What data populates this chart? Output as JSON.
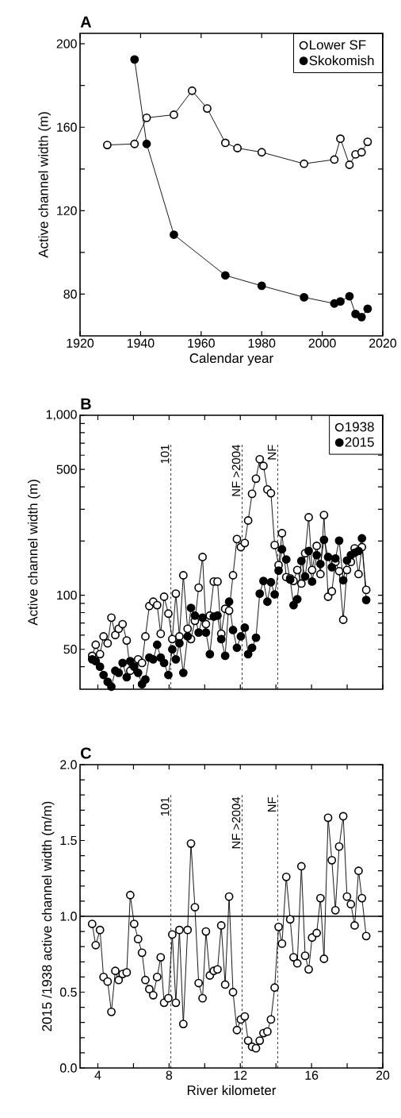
{
  "chart_data": [
    {
      "type": "line",
      "title": "A",
      "xlabel": "Calendar year",
      "ylabel": "Active channel width (m)",
      "xlim": [
        1920,
        2020
      ],
      "xticks": [
        1920,
        1940,
        1960,
        1980,
        2000,
        2020
      ],
      "ylim": [
        60,
        205
      ],
      "yticks": [
        80,
        {
          "value": 100,
          "label": null
        },
        120,
        {
          "value": 140,
          "label": null
        },
        160,
        {
          "value": 180,
          "label": null
        },
        200
      ],
      "marker": "circle",
      "legend": "top right",
      "series": [
        {
          "name": "Lower SF",
          "color": "#ffffff",
          "x": [
            1929,
            1938,
            1942,
            1951,
            1957,
            1962,
            1968,
            1972,
            1980,
            1994,
            2004,
            2006,
            2009,
            2011,
            2013,
            2015
          ],
          "values": [
            151.5,
            152,
            164.5,
            166,
            177.5,
            169,
            152.5,
            150,
            148,
            142.5,
            144.5,
            154.5,
            142,
            147,
            148,
            153
          ]
        },
        {
          "name": "Skokomish",
          "color": "#000000",
          "x": [
            1938,
            1942,
            1951,
            1968,
            1980,
            1994,
            2004,
            2006,
            2009,
            2011,
            2013,
            2015
          ],
          "values": [
            192.5,
            152,
            108.5,
            89,
            84,
            78.5,
            75.5,
            76.5,
            79,
            70.5,
            69,
            73
          ]
        }
      ]
    },
    {
      "type": "line",
      "title": "B",
      "ylabel": "Active channel width (m)",
      "log": "y",
      "tick_labels": "y",
      "xlim": [
        3,
        20
      ],
      "xticks": [
        {
          "value": 4,
          "label": null
        },
        {
          "value": 6,
          "label": null
        },
        {
          "value": 8,
          "label": null
        },
        {
          "value": 10,
          "label": null
        },
        {
          "value": 12,
          "label": null
        },
        {
          "value": 14,
          "label": null
        },
        {
          "value": 16,
          "label": null
        },
        {
          "value": 18,
          "label": null
        },
        {
          "value": 20,
          "label": null
        }
      ],
      "ylim": [
        30,
        1000
      ],
      "yticks": [
        {
          "value": 40,
          "label": null
        },
        50,
        {
          "value": 60,
          "label": null
        },
        {
          "value": 70,
          "label": null
        },
        {
          "value": 80,
          "label": null
        },
        {
          "value": 90,
          "label": null
        },
        100,
        {
          "value": 200,
          "label": null
        },
        {
          "value": 300,
          "label": null
        },
        {
          "value": 400,
          "label": null
        },
        500,
        {
          "value": 600,
          "label": null
        },
        {
          "value": 700,
          "label": null
        },
        {
          "value": 800,
          "label": null
        },
        {
          "value": 900,
          "label": null
        },
        {
          "value": 1000,
          "label": "1,000"
        }
      ],
      "marker": "circle",
      "legend": "top right",
      "annotations": [
        {
          "text": "101",
          "x": 8.1,
          "y": 705
        }
      ],
      "ref_lines": [
        {
          "axis": "x",
          "value": 8.1,
          "line_style": "dashed"
        },
        {
          "axis": "x",
          "value": 12.1,
          "label": "NF >2004",
          "line_style": "dashed"
        },
        {
          "axis": "x",
          "value": 14.1,
          "label": "NF",
          "line_style": "dashed"
        }
      ],
      "x": [
        3.68,
        3.88,
        4.12,
        4.32,
        4.55,
        4.76,
        4.98,
        5.17,
        5.39,
        5.62,
        5.82,
        6.04,
        6.26,
        6.48,
        6.67,
        6.89,
        7.11,
        7.33,
        7.53,
        7.72,
        7.96,
        8.18,
        8.38,
        8.58,
        8.8,
        9.04,
        9.23,
        9.45,
        9.66,
        9.88,
        10.07,
        10.29,
        10.51,
        10.72,
        10.93,
        11.15,
        11.37,
        11.59,
        11.81,
        12.03,
        12.25,
        12.44,
        12.66,
        12.88,
        13.09,
        13.3,
        13.52,
        13.72,
        13.93,
        14.15,
        14.34,
        14.58,
        14.8,
        14.99,
        15.2,
        15.43,
        15.64,
        15.84,
        16.03,
        16.29,
        16.5,
        16.7,
        16.93,
        17.14,
        17.34,
        17.55,
        17.78,
        17.99,
        18.21,
        18.42,
        18.64,
        18.83,
        19.07
      ],
      "series": [
        {
          "name": "1938",
          "color": "#ffffff",
          "values": [
            46,
            53,
            47,
            59,
            54,
            75,
            60,
            65,
            69,
            56,
            38,
            42,
            44,
            42,
            59,
            87,
            92,
            88,
            61,
            98,
            79,
            57,
            102,
            59,
            129,
            65,
            57,
            72,
            110,
            163,
            69,
            77,
            119,
            119,
            61,
            84,
            82,
            129,
            205,
            185,
            195,
            260,
            366,
            444,
            570,
            523,
            387,
            369,
            190,
            147,
            221,
            126,
            124,
            120,
            138,
            116,
            171,
            271,
            138,
            188,
            131,
            279,
            98,
            105,
            153,
            136,
            73,
            138,
            153,
            182,
            131,
            185,
            107
          ]
        },
        {
          "name": "2015",
          "color": "#000000",
          "values": [
            44,
            43,
            40,
            36,
            33,
            31,
            38,
            37,
            42,
            35,
            43,
            40,
            37,
            32,
            34,
            45,
            44,
            53,
            45,
            42,
            36,
            50,
            44,
            54,
            37,
            59,
            85,
            77,
            62,
            75,
            62,
            47,
            76,
            77,
            57,
            46,
            92,
            64,
            51,
            59,
            66,
            47,
            51,
            58,
            102,
            120,
            92,
            118,
            101,
            137,
            180,
            158,
            122,
            88,
            95,
            155,
            127,
            176,
            119,
            167,
            149,
            203,
            163,
            143,
            160,
            201,
            121,
            156,
            167,
            172,
            176,
            207,
            94
          ]
        }
      ]
    },
    {
      "type": "line",
      "title": "C",
      "xlabel": "River kilometer",
      "ylabel": "2015 /1938 active channel width (m/m)",
      "xlim": [
        3,
        20
      ],
      "xticks": [
        4,
        {
          "value": 6,
          "label": null
        },
        8,
        {
          "value": 10,
          "label": null
        },
        12,
        {
          "value": 14,
          "label": null
        },
        16,
        {
          "value": 18,
          "label": null
        },
        20
      ],
      "ylim": [
        0,
        2
      ],
      "yticks": [
        {
          "value": 0,
          "label": "0.0"
        },
        {
          "value": 0.1,
          "label": null
        },
        {
          "value": 0.2,
          "label": null
        },
        {
          "value": 0.3,
          "label": null
        },
        {
          "value": 0.4,
          "label": null
        },
        0.5,
        {
          "value": 0.6,
          "label": null
        },
        {
          "value": 0.7,
          "label": null
        },
        {
          "value": 0.8,
          "label": null
        },
        {
          "value": 0.9,
          "label": null
        },
        {
          "value": 1,
          "label": "1.0"
        },
        {
          "value": 1.1,
          "label": null
        },
        {
          "value": 1.2,
          "label": null
        },
        {
          "value": 1.3,
          "label": null
        },
        {
          "value": 1.4,
          "label": null
        },
        1.5,
        {
          "value": 1.6,
          "label": null
        },
        {
          "value": 1.7,
          "label": null
        },
        {
          "value": 1.8,
          "label": null
        },
        {
          "value": 1.9,
          "label": null
        },
        {
          "value": 2,
          "label": "2.0"
        }
      ],
      "marker": "circle",
      "annotations": [
        {
          "text": "101",
          "x": 8.1,
          "y": 1.8
        }
      ],
      "ref_lines": [
        {
          "axis": "y",
          "value": 1,
          "line_style": "solid"
        },
        {
          "axis": "x",
          "value": 8.1,
          "line_style": "dashed"
        },
        {
          "axis": "x",
          "value": 12.1,
          "label": "NF >2004",
          "line_style": "dashed"
        },
        {
          "axis": "x",
          "value": 14.1,
          "label": "NF",
          "line_style": "dashed"
        }
      ],
      "series": [
        {
          "color": "#ffffff",
          "x": [
            3.68,
            3.88,
            4.12,
            4.32,
            4.55,
            4.76,
            4.98,
            5.17,
            5.39,
            5.62,
            5.82,
            6.04,
            6.26,
            6.48,
            6.67,
            6.89,
            7.11,
            7.33,
            7.53,
            7.72,
            7.96,
            8.18,
            8.38,
            8.58,
            8.8,
            9.04,
            9.23,
            9.45,
            9.66,
            9.88,
            10.07,
            10.29,
            10.51,
            10.72,
            10.93,
            11.15,
            11.37,
            11.59,
            11.81,
            12.03,
            12.25,
            12.44,
            12.66,
            12.88,
            13.09,
            13.3,
            13.52,
            13.72,
            13.93,
            14.15,
            14.34,
            14.58,
            14.8,
            14.99,
            15.2,
            15.43,
            15.64,
            15.84,
            16.03,
            16.29,
            16.5,
            16.7,
            16.93,
            17.14,
            17.34,
            17.55,
            17.78,
            17.99,
            18.21,
            18.42,
            18.64,
            18.83,
            19.07
          ],
          "values": [
            0.95,
            0.81,
            0.91,
            0.6,
            0.57,
            0.37,
            0.64,
            0.58,
            0.62,
            0.63,
            1.14,
            0.95,
            0.85,
            0.76,
            0.58,
            0.52,
            0.48,
            0.6,
            0.73,
            0.43,
            0.46,
            0.88,
            0.43,
            0.91,
            0.29,
            0.91,
            1.48,
            1.06,
            0.56,
            0.46,
            0.9,
            0.61,
            0.64,
            0.65,
            0.94,
            0.55,
            1.13,
            0.5,
            0.25,
            0.32,
            0.34,
            0.18,
            0.14,
            0.13,
            0.18,
            0.23,
            0.24,
            0.32,
            0.53,
            0.93,
            0.82,
            1.26,
            0.98,
            0.73,
            0.69,
            1.33,
            0.74,
            0.65,
            0.86,
            0.89,
            1.12,
            0.72,
            1.65,
            1.37,
            1.04,
            1.46,
            1.66,
            1.13,
            1.08,
            0.94,
            1.3,
            1.12,
            0.87
          ]
        }
      ]
    }
  ]
}
